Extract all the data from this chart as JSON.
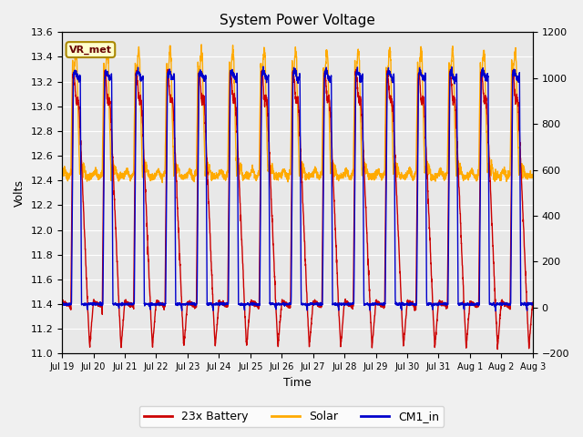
{
  "title": "System Power Voltage",
  "xlabel": "Time",
  "ylabel_left": "Volts",
  "ylim_left": [
    11.0,
    13.6
  ],
  "ylim_right": [
    -200,
    1200
  ],
  "annotation": "VR_met",
  "x_ticks": [
    "Jul 19",
    "Jul 20",
    "Jul 21",
    "Jul 22",
    "Jul 23",
    "Jul 24",
    "Jul 25",
    "Jul 26",
    "Jul 27",
    "Jul 28",
    "Jul 29",
    "Jul 30",
    "Jul 31",
    "Aug 1",
    "Aug 2",
    "Aug 3"
  ],
  "y_ticks_left": [
    11.0,
    11.2,
    11.4,
    11.6,
    11.8,
    12.0,
    12.2,
    12.4,
    12.6,
    12.8,
    13.0,
    13.2,
    13.4,
    13.6
  ],
  "y_ticks_right": [
    -200,
    0,
    200,
    400,
    600,
    800,
    1000,
    1200
  ],
  "colors": {
    "battery": "#cc0000",
    "solar": "#ffaa00",
    "cm1": "#0000cc"
  },
  "line_width": 1.0,
  "background_color": "#e8e8e8",
  "grid_color": "#ffffff",
  "num_days": 15,
  "pts_per_day": 200
}
